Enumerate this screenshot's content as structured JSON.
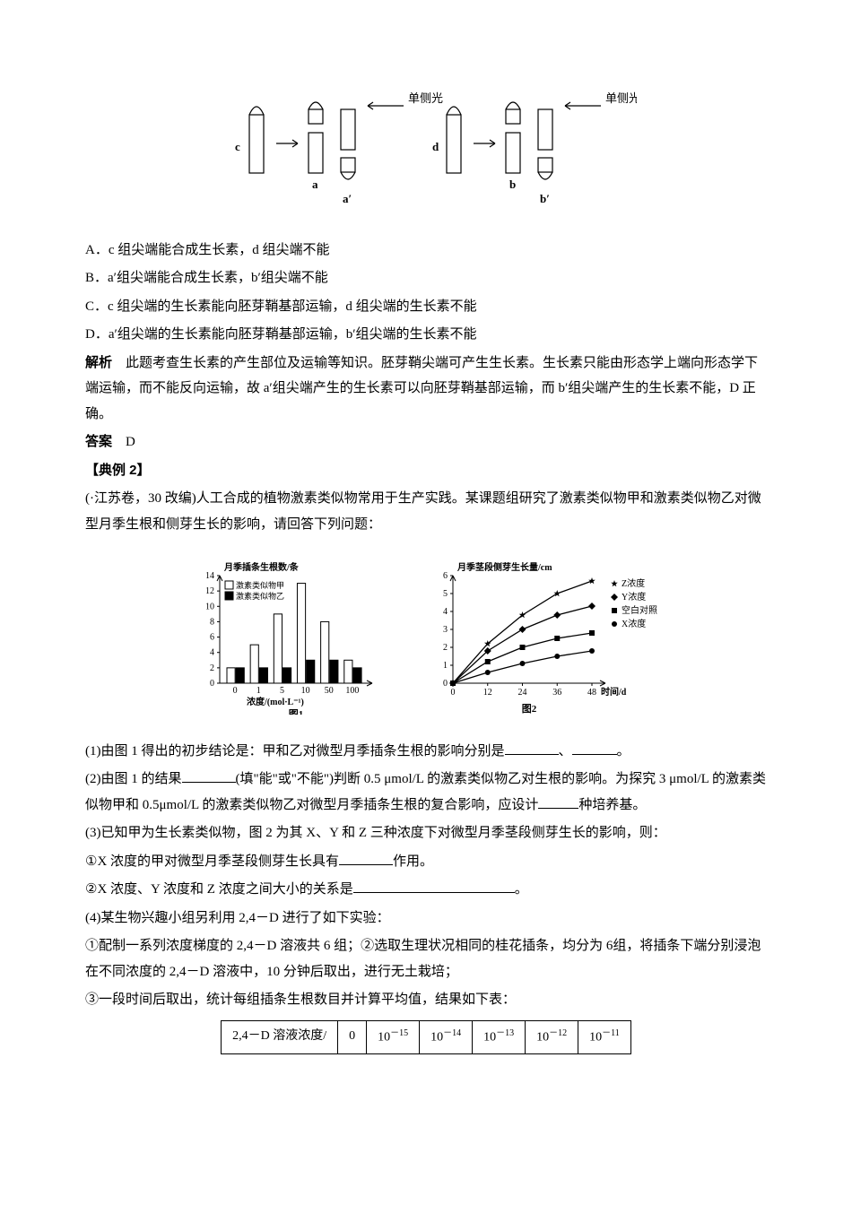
{
  "fig1_labels": {
    "light": "单侧光",
    "c": "c",
    "a": "a",
    "a2": "a′",
    "d": "d",
    "b": "b",
    "b2": "b′"
  },
  "options": {
    "A": "A．c 组尖端能合成生长素，d 组尖端不能",
    "B": "B．a′组尖端能合成生长素，b′组尖端不能",
    "C": "C．c 组尖端的生长素能向胚芽鞘基部运输，d 组尖端的生长素不能",
    "D": "D．a′组尖端的生长素能向胚芽鞘基部运输，b′组尖端的生长素不能"
  },
  "analysis_label": "解析",
  "analysis_text": "　此题考查生长素的产生部位及运输等知识。胚芽鞘尖端可产生生长素。生长素只能由形态学上端向形态学下端运输，而不能反向运输，故 a′组尖端产生的生长素可以向胚芽鞘基部运输，而 b′组尖端产生的生长素不能，D 正确。",
  "answer_label": "答案",
  "answer_text": "　D",
  "ex2_label": "【典例 2】",
  "ex2_intro": "(·江苏卷，30 改编)人工合成的植物激素类似物常用于生产实践。某课题组研究了激素类似物甲和激素类似物乙对微型月季生根和侧芽生长的影响，请回答下列问题：",
  "chart1": {
    "title": "月季插条生根数/条",
    "legend1": "激素类似物甲",
    "legend2": "激素类似物乙",
    "xlabel_line1": "浓度/(mol·L⁻¹)",
    "caption": "图1",
    "x_ticks": [
      "0",
      "1",
      "5",
      "10",
      "50",
      "100"
    ],
    "y_ticks": [
      "0",
      "2",
      "4",
      "6",
      "8",
      "10",
      "12",
      "14"
    ],
    "series_jia": [
      2,
      5,
      9,
      13,
      8,
      3
    ],
    "series_yi": [
      2,
      2,
      2,
      3,
      3,
      2
    ],
    "color_jia": "#ffffff",
    "color_yi": "#000000",
    "border": "#000000"
  },
  "chart2": {
    "title": "月季茎段侧芽生长量/cm",
    "legendZ": "Z浓度",
    "legendY": "Y浓度",
    "legendBlank": "空白对照",
    "legendX": "X浓度",
    "xlabel": "时间/d",
    "caption": "图2",
    "x_ticks": [
      "0",
      "12",
      "24",
      "36",
      "48"
    ],
    "y_ticks": [
      "0",
      "1",
      "2",
      "3",
      "4",
      "5",
      "6"
    ],
    "seriesZ": [
      0,
      2.2,
      3.8,
      5.0,
      5.7
    ],
    "seriesY": [
      0,
      1.8,
      3.0,
      3.8,
      4.3
    ],
    "seriesBlank": [
      0,
      1.2,
      2.0,
      2.5,
      2.8
    ],
    "seriesX": [
      0,
      0.6,
      1.1,
      1.5,
      1.8
    ],
    "colorZ": "#000",
    "colorY": "#000",
    "colorBlank": "#000",
    "colorX": "#000",
    "markerZ": "star",
    "markerY": "diamond",
    "markerBlank": "square",
    "markerX": "dot"
  },
  "q1_a": "(1)由图 1 得出的初步结论是：甲和乙对微型月季插条生根的影响分别是",
  "q1_b": "、",
  "q1_c": "。",
  "q2_a": "(2)由图 1 的结果",
  "q2_b": "(填\"能\"或\"不能\")判断 0.5 μmol/L 的激素类似物乙对生根的影响。为探究 3 μmol/L 的激素类似物甲和 0.5μmol/L 的激素类似物乙对微型月季插条生根的复合影响，应设计",
  "q2_c": "种培养基。",
  "q3_intro": "(3)已知甲为生长素类似物，图 2 为其 X、Y 和 Z 三种浓度下对微型月季茎段侧芽生长的影响，则：",
  "q3_1a": "①X 浓度的甲对微型月季茎段侧芽生长具有",
  "q3_1b": "作用。",
  "q3_2a": "②X 浓度、Y 浓度和 Z 浓度之间大小的关系是",
  "q3_2b": "。",
  "q4_intro": "(4)某生物兴趣小组另利用 2,4－D 进行了如下实验：",
  "q4_1": "①配制一系列浓度梯度的 2,4－D 溶液共 6 组；②选取生理状况相同的桂花插条，均分为 6组，将插条下端分别浸泡在不同浓度的 2,4－D 溶液中，10 分钟后取出，进行无土栽培；",
  "q4_3": "③一段时间后取出，统计每组插条生根数目并计算平均值，结果如下表：",
  "table": {
    "header": "2,4－D 溶液浓度/",
    "cols": [
      "0",
      "10⁻¹⁵",
      "10⁻¹⁴",
      "10⁻¹³",
      "10⁻¹²",
      "10⁻¹¹"
    ]
  },
  "blank_widths": {
    "w60": 60,
    "w50": 50,
    "w45": 45,
    "w180": 180
  }
}
